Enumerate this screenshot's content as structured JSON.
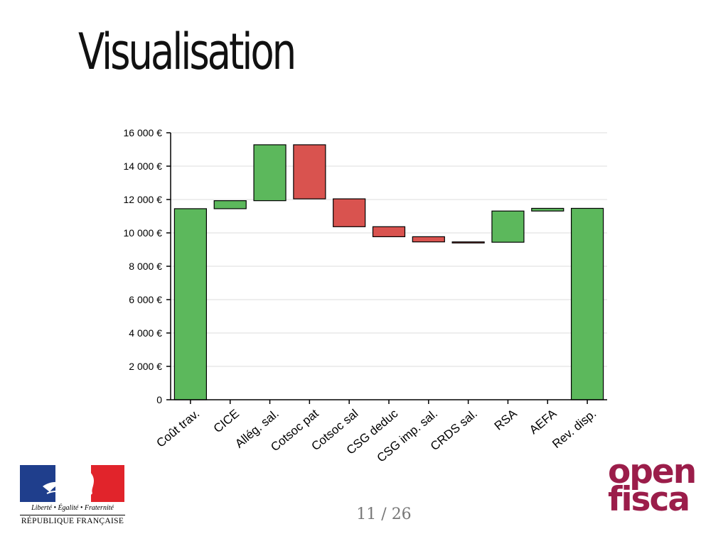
{
  "slide": {
    "title": "Visualisation",
    "page_number": "11 / 26"
  },
  "logos": {
    "republic_motto": "Liberté • Égalité • Fraternité",
    "republic_name": "RÉPUBLIQUE FRANÇAISE",
    "openfisca_line1": "open",
    "openfisca_line2": "fisca"
  },
  "colors": {
    "positive": "#5cb85c",
    "negative": "#d9534f",
    "stroke": "#000000",
    "grid": "#dddddd",
    "brand": "#9b1d4a"
  },
  "chart_data": {
    "type": "bar",
    "subtype": "waterfall",
    "categories": [
      "Coût trav.",
      "CICE",
      "Allég. sal.",
      "Cotsoc pat",
      "Cotsoc sal",
      "CSG deduc",
      "CSG imp. sal.",
      "CRDS sal.",
      "RSA",
      "AEFA",
      "Rev. disp."
    ],
    "bars": [
      {
        "label": "Coût trav.",
        "start": 0,
        "end": 11450,
        "sign": "positive"
      },
      {
        "label": "CICE",
        "start": 11450,
        "end": 11930,
        "sign": "positive"
      },
      {
        "label": "Allég. sal.",
        "start": 11930,
        "end": 15280,
        "sign": "positive"
      },
      {
        "label": "Cotsoc pat",
        "start": 15280,
        "end": 12040,
        "sign": "negative"
      },
      {
        "label": "Cotsoc sal",
        "start": 12040,
        "end": 10370,
        "sign": "negative"
      },
      {
        "label": "CSG deduc",
        "start": 10370,
        "end": 9770,
        "sign": "negative"
      },
      {
        "label": "CSG imp. sal.",
        "start": 9770,
        "end": 9460,
        "sign": "negative"
      },
      {
        "label": "CRDS sal.",
        "start": 9460,
        "end": 9440,
        "sign": "negative"
      },
      {
        "label": "RSA",
        "start": 9440,
        "end": 11310,
        "sign": "positive"
      },
      {
        "label": "AEFA",
        "start": 11310,
        "end": 11470,
        "sign": "positive"
      },
      {
        "label": "Rev. disp.",
        "start": 0,
        "end": 11470,
        "sign": "positive"
      }
    ],
    "yticks": [
      0,
      2000,
      4000,
      6000,
      8000,
      10000,
      12000,
      14000,
      16000
    ],
    "ytick_labels": [
      "0",
      "2 000 €",
      "4 000 €",
      "6 000 €",
      "8 000 €",
      "10 000 €",
      "12 000 €",
      "14 000 €",
      "16 000 €"
    ],
    "ylim": [
      0,
      16000
    ],
    "grid": true,
    "legend": "none"
  }
}
